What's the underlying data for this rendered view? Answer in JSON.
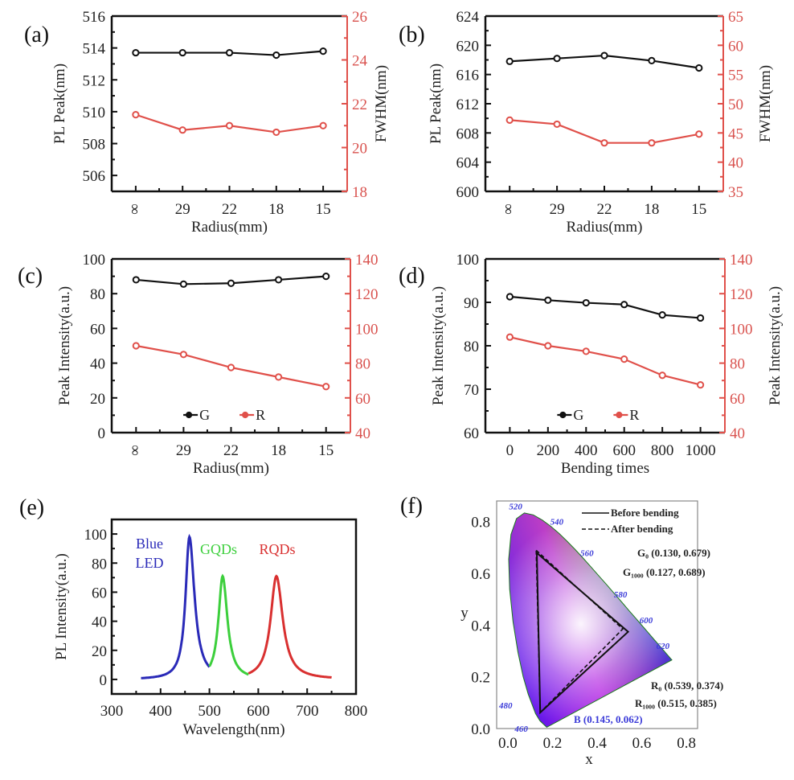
{
  "chart_data": [
    {
      "id": "a",
      "panel_label": "(a)",
      "type": "line",
      "xlabel": "Radius(mm)",
      "categories": [
        "∞",
        "29",
        "22",
        "18",
        "15"
      ],
      "ylabel": "PL Peak(nm)",
      "ylim": [
        505,
        516
      ],
      "yticks": [
        506,
        508,
        510,
        512,
        514,
        516
      ],
      "y2label": "FWHM(nm)",
      "y2lim": [
        18,
        26
      ],
      "y2ticks": [
        18,
        20,
        22,
        24,
        26
      ],
      "series": [
        {
          "name": "PL Peak",
          "axis": "left",
          "color": "#111111",
          "values": [
            513.7,
            513.7,
            513.7,
            513.55,
            513.8
          ]
        },
        {
          "name": "FWHM",
          "axis": "right",
          "color": "#e0504a",
          "values": [
            21.5,
            20.8,
            21.0,
            20.7,
            21.0
          ]
        }
      ]
    },
    {
      "id": "b",
      "panel_label": "(b)",
      "type": "line",
      "xlabel": "Radius(mm)",
      "categories": [
        "∞",
        "29",
        "22",
        "18",
        "15"
      ],
      "ylabel": "PL Peak(nm)",
      "ylim": [
        600,
        624
      ],
      "yticks": [
        600,
        604,
        608,
        612,
        616,
        620,
        624
      ],
      "y2label": "FWHM(nm)",
      "y2lim": [
        35,
        65
      ],
      "y2ticks": [
        35,
        40,
        45,
        50,
        55,
        60,
        65
      ],
      "series": [
        {
          "name": "PL Peak",
          "axis": "left",
          "color": "#111111",
          "values": [
            617.8,
            618.2,
            618.6,
            617.9,
            616.9
          ]
        },
        {
          "name": "FWHM",
          "axis": "right",
          "color": "#e0504a",
          "values": [
            47.2,
            46.5,
            43.3,
            43.3,
            44.8
          ]
        }
      ]
    },
    {
      "id": "c",
      "panel_label": "(c)",
      "type": "line",
      "xlabel": "Radius(mm)",
      "categories": [
        "∞",
        "29",
        "22",
        "18",
        "15"
      ],
      "ylabel": "Peak Intensity(a.u.)",
      "ylim": [
        0,
        100
      ],
      "yticks": [
        0,
        20,
        40,
        60,
        80,
        100
      ],
      "y2label": "",
      "y2lim": [
        40,
        140
      ],
      "y2ticks": [
        40,
        60,
        80,
        100,
        120,
        140
      ],
      "legend": {
        "placement": "bottom-center",
        "items": [
          "G",
          "R"
        ]
      },
      "series": [
        {
          "name": "G",
          "axis": "left",
          "color": "#111111",
          "values": [
            88,
            85.5,
            86,
            88,
            90
          ]
        },
        {
          "name": "R",
          "axis": "right",
          "color": "#e0504a",
          "values": [
            90,
            85,
            77.5,
            72,
            66.5
          ]
        }
      ]
    },
    {
      "id": "d",
      "panel_label": "(d)",
      "type": "line",
      "xlabel": "Bending times",
      "categories": [
        "0",
        "200",
        "400",
        "600",
        "800",
        "1000"
      ],
      "ylabel": "Peak Intensity(a.u.)",
      "ylim": [
        60,
        100
      ],
      "yticks": [
        60,
        70,
        80,
        90,
        100
      ],
      "y2label": "Peak Intensity(a.u.)",
      "y2lim": [
        40,
        140
      ],
      "y2ticks": [
        40,
        60,
        80,
        100,
        120,
        140
      ],
      "legend": {
        "placement": "bottom-center",
        "items": [
          "G",
          "R"
        ]
      },
      "series": [
        {
          "name": "G",
          "axis": "left",
          "color": "#111111",
          "values": [
            91.3,
            90.5,
            89.9,
            89.5,
            87.1,
            86.4
          ]
        },
        {
          "name": "R",
          "axis": "right",
          "color": "#e0504a",
          "values": [
            95,
            90,
            86.8,
            82.3,
            73,
            67.5
          ]
        }
      ]
    },
    {
      "id": "e",
      "panel_label": "(e)",
      "type": "line",
      "xlabel": "Wavelength(nm)",
      "ylabel": "PL Intensity(a.u.)",
      "xlim": [
        300,
        800
      ],
      "xticks": [
        300,
        400,
        500,
        600,
        700,
        800
      ],
      "ylim": [
        -10,
        110
      ],
      "yticks": [
        0,
        20,
        40,
        60,
        80,
        100
      ],
      "series": [
        {
          "name": "Blue LED",
          "label_lines": [
            "Blue",
            "LED"
          ],
          "color": "#2a2ab8",
          "peak_nm": 459,
          "peak": 98,
          "range_nm": [
            360,
            500
          ],
          "fwhm_left": 12,
          "fwhm_right": 16
        },
        {
          "name": "GQDs",
          "label_lines": [
            "GQDs"
          ],
          "color": "#3ccf3c",
          "peak_nm": 527,
          "peak": 71,
          "range_nm": [
            500,
            580
          ],
          "fwhm_left": 13,
          "fwhm_right": 15
        },
        {
          "name": "RQDs",
          "label_lines": [
            "RQDs"
          ],
          "color": "#d93030",
          "peak_nm": 637,
          "peak": 71,
          "range_nm": [
            580,
            750
          ],
          "fwhm_left": 18,
          "fwhm_right": 20
        }
      ]
    },
    {
      "id": "f",
      "panel_label": "(f)",
      "type": "scatter",
      "xlabel": "x",
      "ylabel": "y",
      "xlim": [
        -0.05,
        0.85
      ],
      "xticks": [
        0.0,
        0.2,
        0.4,
        0.6,
        0.8
      ],
      "ylim": [
        0.0,
        0.88
      ],
      "yticks": [
        0.0,
        0.2,
        0.4,
        0.6,
        0.8
      ],
      "legend": {
        "placement": "top-right",
        "items": [
          {
            "label": "Before bending",
            "style": "solid"
          },
          {
            "label": "After bending",
            "style": "dashed"
          }
        ]
      },
      "wavelength_labels": [
        "460",
        "480",
        "520",
        "540",
        "560",
        "580",
        "600",
        "620"
      ],
      "triangles": [
        {
          "name": "Before bending",
          "style": "solid",
          "points": [
            [
              0.13,
              0.679
            ],
            [
              0.539,
              0.374
            ],
            [
              0.145,
              0.062
            ]
          ]
        },
        {
          "name": "After bending",
          "style": "dashed",
          "points": [
            [
              0.127,
              0.689
            ],
            [
              0.515,
              0.385
            ],
            [
              0.145,
              0.062
            ]
          ]
        }
      ],
      "annotations": [
        {
          "text": "G₀ (0.130, 0.679)",
          "color": "#222222"
        },
        {
          "text": "G₁₀₀₀ (0.127, 0.689)",
          "color": "#222222"
        },
        {
          "text": "R₀ (0.539, 0.374)",
          "color": "#222222"
        },
        {
          "text": "R₁₀₀₀ (0.515, 0.385)",
          "color": "#222222"
        },
        {
          "text": "B (0.145, 0.062)",
          "color": "#3a3ad8"
        }
      ]
    }
  ]
}
